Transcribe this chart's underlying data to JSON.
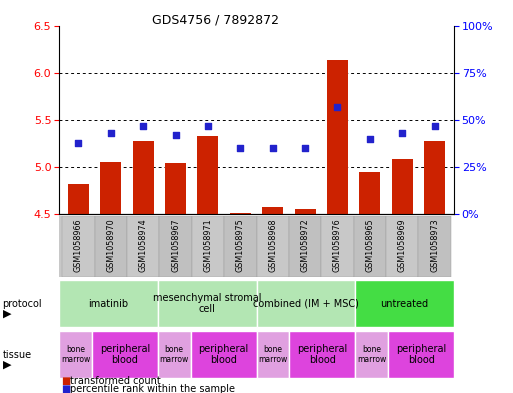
{
  "title": "GDS4756 / 7892872",
  "samples": [
    "GSM1058966",
    "GSM1058970",
    "GSM1058974",
    "GSM1058967",
    "GSM1058971",
    "GSM1058975",
    "GSM1058968",
    "GSM1058972",
    "GSM1058976",
    "GSM1058965",
    "GSM1058969",
    "GSM1058973"
  ],
  "bar_values": [
    4.82,
    5.05,
    5.28,
    5.04,
    5.33,
    4.51,
    4.58,
    4.55,
    6.13,
    4.95,
    5.08,
    5.28
  ],
  "dot_values": [
    38,
    43,
    47,
    42,
    47,
    35,
    35,
    35,
    57,
    40,
    43,
    47
  ],
  "ylim_left": [
    4.5,
    6.5
  ],
  "ylim_right": [
    0,
    100
  ],
  "yticks_left": [
    4.5,
    5.0,
    5.5,
    6.0,
    6.5
  ],
  "yticks_right": [
    0,
    25,
    50,
    75,
    100
  ],
  "ytick_labels_right": [
    "0%",
    "25%",
    "50%",
    "75%",
    "100%"
  ],
  "bar_color": "#cc2200",
  "dot_color": "#2222cc",
  "bg_color": "#ffffff",
  "sample_bg": "#c8c8c8",
  "protocols": [
    {
      "label": "imatinib",
      "start": 0,
      "end": 3,
      "color": "#b3e6b3"
    },
    {
      "label": "mesenchymal stromal\ncell",
      "start": 3,
      "end": 6,
      "color": "#b3e6b3"
    },
    {
      "label": "combined (IM + MSC)",
      "start": 6,
      "end": 9,
      "color": "#b3e6b3"
    },
    {
      "label": "untreated",
      "start": 9,
      "end": 12,
      "color": "#44dd44"
    }
  ],
  "tissues": [
    {
      "label": "bone\nmarrow",
      "start": 0,
      "end": 1,
      "color": "#e0a0e0"
    },
    {
      "label": "peripheral\nblood",
      "start": 1,
      "end": 3,
      "color": "#dd44dd"
    },
    {
      "label": "bone\nmarrow",
      "start": 3,
      "end": 4,
      "color": "#e0a0e0"
    },
    {
      "label": "peripheral\nblood",
      "start": 4,
      "end": 6,
      "color": "#dd44dd"
    },
    {
      "label": "bone\nmarrow",
      "start": 6,
      "end": 7,
      "color": "#e0a0e0"
    },
    {
      "label": "peripheral\nblood",
      "start": 7,
      "end": 9,
      "color": "#dd44dd"
    },
    {
      "label": "bone\nmarrow",
      "start": 9,
      "end": 10,
      "color": "#e0a0e0"
    },
    {
      "label": "peripheral\nblood",
      "start": 10,
      "end": 12,
      "color": "#dd44dd"
    }
  ],
  "bar_bottom": 4.5
}
